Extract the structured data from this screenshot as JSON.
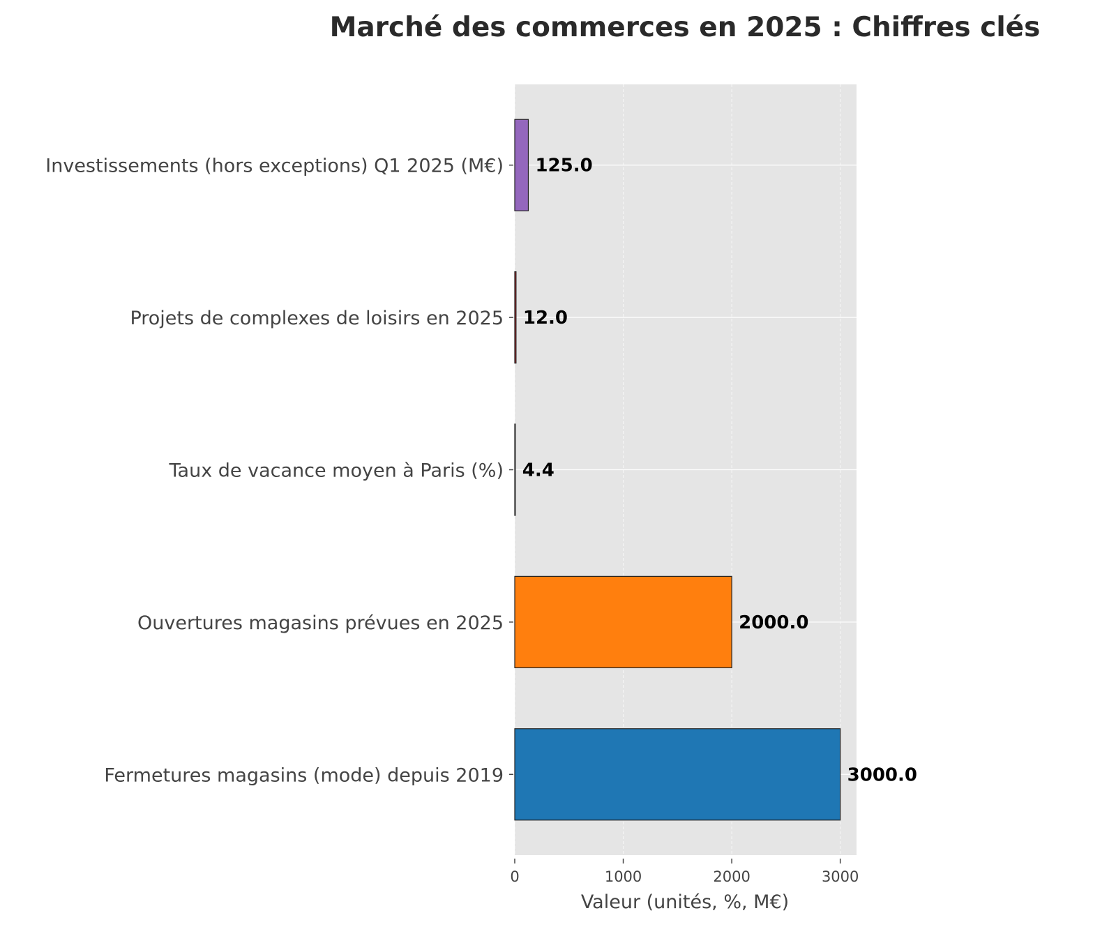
{
  "chart_data": {
    "type": "bar",
    "orientation": "horizontal",
    "title": "Marché des commerces en 2025 : Chiffres clés",
    "xlabel": "Valeur (unités, %, M€)",
    "ylabel": "",
    "categories": [
      "Fermetures magasins (mode) depuis 2019",
      "Ouvertures magasins prévues en 2025",
      "Taux de vacance moyen à Paris (%)",
      "Projets de complexes de loisirs en 2025",
      "Investissements (hors exceptions) Q1 2025 (M€)"
    ],
    "values": [
      3000.0,
      2000.0,
      4.4,
      12.0,
      125.0
    ],
    "value_labels": [
      "3000.0",
      "2000.0",
      "4.4",
      "12.0",
      "125.0"
    ],
    "colors": [
      "#1f77b4",
      "#ff7f0e",
      "#2ca02c",
      "#d62728",
      "#9467bd"
    ],
    "xlim": [
      0,
      3150
    ],
    "xticks": [
      0,
      1000,
      2000,
      3000
    ],
    "xtick_labels": [
      "0",
      "1000",
      "2000",
      "3000"
    ],
    "grid": true,
    "background": "#e5e5e5"
  }
}
